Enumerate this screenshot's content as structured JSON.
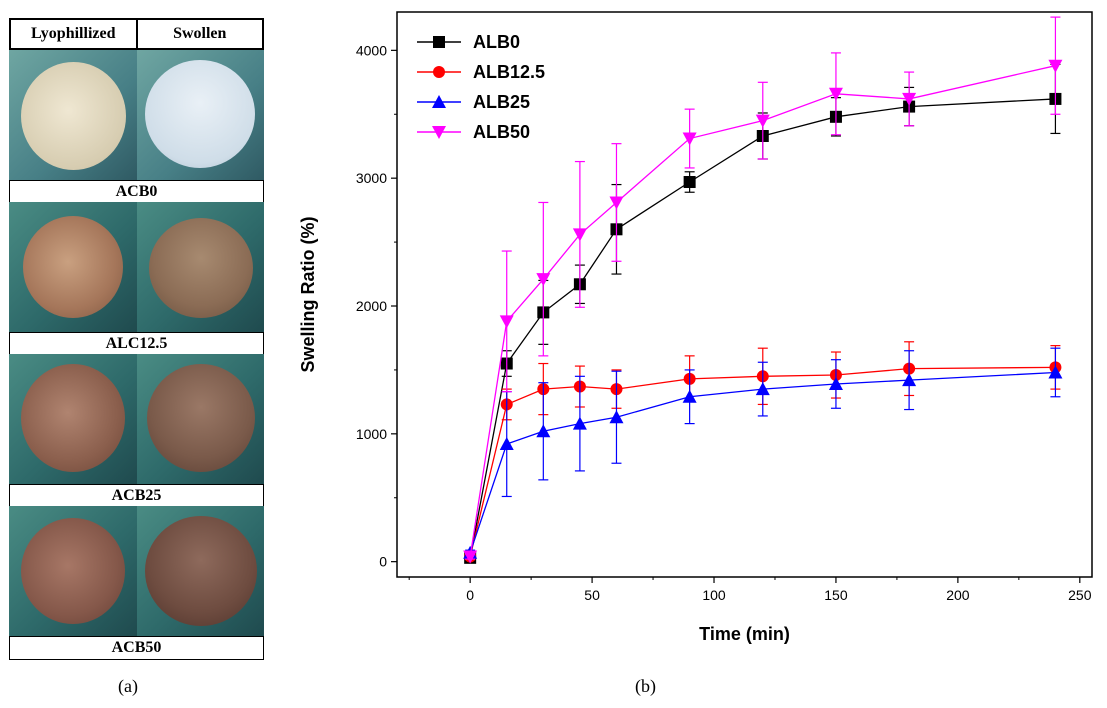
{
  "panel_a": {
    "header": {
      "left": "Lyophillized",
      "right": "Swollen"
    },
    "samples": [
      {
        "label": "ACB0"
      },
      {
        "label": "ALC12.5"
      },
      {
        "label": "ACB25"
      },
      {
        "label": "ACB50"
      }
    ],
    "caption": "(a)"
  },
  "panel_b": {
    "caption": "(b)"
  },
  "chart_data": {
    "type": "line",
    "title": "",
    "xlabel": "Time (min)",
    "ylabel": "Swelling Ratio (%)",
    "xlim": [
      -30,
      255
    ],
    "ylim": [
      -120,
      4300
    ],
    "x_ticks": [
      0,
      50,
      100,
      150,
      200,
      250
    ],
    "y_ticks": [
      0,
      1000,
      2000,
      3000,
      4000
    ],
    "grid": false,
    "legend_position": "top-left",
    "x": [
      0,
      15,
      30,
      45,
      60,
      90,
      120,
      150,
      180,
      240
    ],
    "series": [
      {
        "name": "ALB0",
        "color": "#000000",
        "marker": "square",
        "values": [
          30,
          1550,
          1950,
          2170,
          2600,
          2970,
          3330,
          3480,
          3560,
          3620
        ],
        "errors": [
          20,
          100,
          250,
          150,
          350,
          80,
          180,
          150,
          150,
          270
        ]
      },
      {
        "name": "ALB12.5",
        "color": "#ff0000",
        "marker": "circle",
        "values": [
          40,
          1230,
          1350,
          1370,
          1350,
          1430,
          1450,
          1460,
          1510,
          1520
        ],
        "errors": [
          20,
          120,
          200,
          160,
          150,
          180,
          220,
          180,
          210,
          170
        ]
      },
      {
        "name": "ALB25",
        "color": "#0000ff",
        "marker": "triangle-up",
        "values": [
          70,
          920,
          1020,
          1080,
          1130,
          1290,
          1350,
          1390,
          1420,
          1480
        ],
        "errors": [
          20,
          410,
          380,
          370,
          360,
          210,
          210,
          190,
          230,
          190
        ]
      },
      {
        "name": "ALB50",
        "color": "#ff00ff",
        "marker": "triangle-down",
        "values": [
          40,
          1880,
          2210,
          2560,
          2810,
          3310,
          3450,
          3660,
          3620,
          3880
        ],
        "errors": [
          20,
          550,
          600,
          570,
          460,
          230,
          300,
          320,
          210,
          380
        ]
      }
    ]
  }
}
